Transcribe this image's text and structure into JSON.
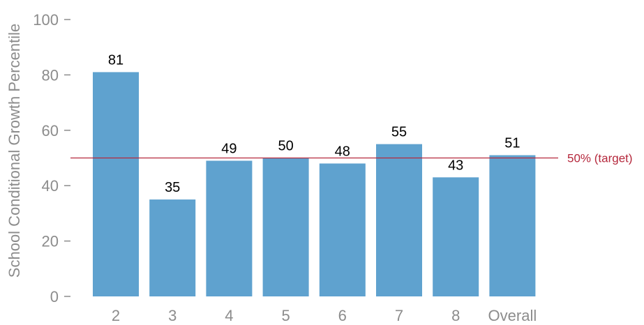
{
  "chart_data": {
    "type": "bar",
    "categories": [
      "2",
      "3",
      "4",
      "5",
      "6",
      "7",
      "8",
      "Overall"
    ],
    "values": [
      81,
      35,
      49,
      50,
      48,
      55,
      43,
      51
    ],
    "data_labels": [
      "81",
      "35",
      "49",
      "50",
      "48",
      "55",
      "43",
      "51"
    ],
    "ylabel": "School Conditional Growth Percentile",
    "xlabel": "",
    "ylim": [
      0,
      100
    ],
    "yticks": [
      0,
      20,
      40,
      60,
      80,
      100
    ],
    "grid": false,
    "reference_line": {
      "value": 50,
      "label": "50% (target)",
      "color": "#b5283c"
    },
    "bar_color": "#5fa2cf"
  }
}
